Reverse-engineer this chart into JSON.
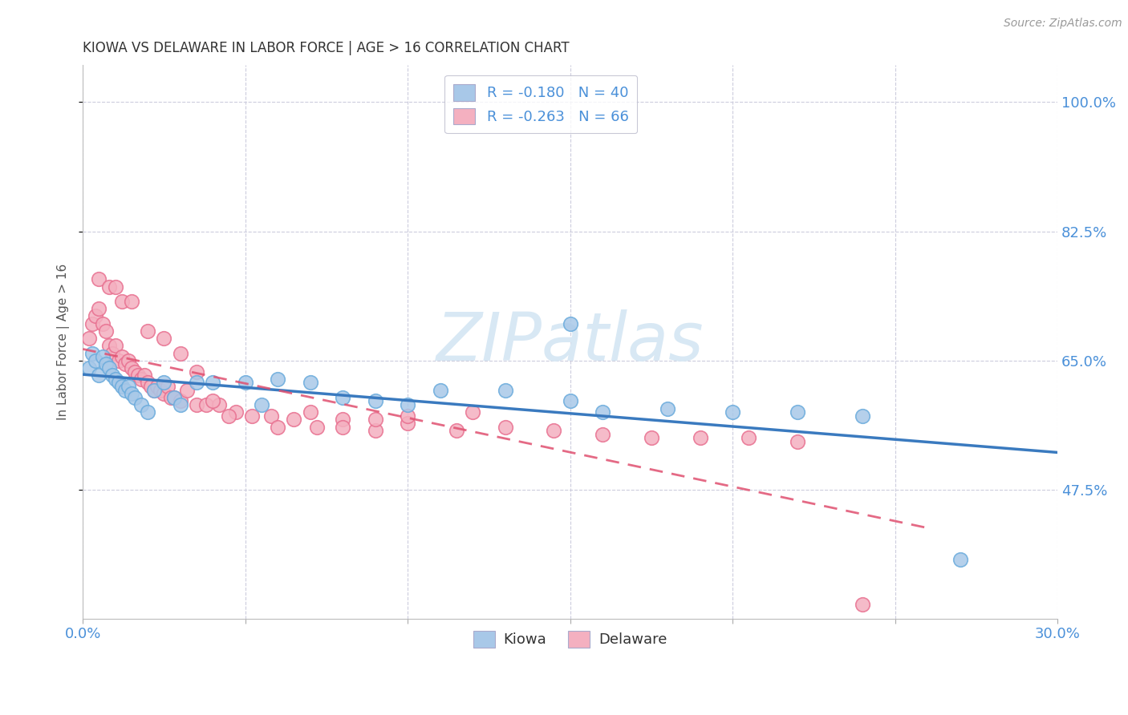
{
  "title": "KIOWA VS DELAWARE IN LABOR FORCE | AGE > 16 CORRELATION CHART",
  "source": "Source: ZipAtlas.com",
  "ylabel": "In Labor Force | Age > 16",
  "xlim": [
    0.0,
    0.3
  ],
  "ylim": [
    0.3,
    1.05
  ],
  "xticks": [
    0.0,
    0.05,
    0.1,
    0.15,
    0.2,
    0.25,
    0.3
  ],
  "xtick_labels": [
    "0.0%",
    "",
    "",
    "",
    "",
    "",
    "30.0%"
  ],
  "ytick_labels": [
    "100.0%",
    "82.5%",
    "65.0%",
    "47.5%"
  ],
  "ytick_positions": [
    1.0,
    0.825,
    0.65,
    0.475
  ],
  "kiowa_color": "#a8c8e8",
  "delaware_color": "#f4b0c0",
  "kiowa_edge": "#6aabdc",
  "delaware_edge": "#e87090",
  "trend_kiowa_color": "#3a7abf",
  "trend_delaware_color": "#e05070",
  "watermark_color": "#d8e8f4",
  "kiowa_x": [
    0.002,
    0.003,
    0.004,
    0.005,
    0.006,
    0.007,
    0.008,
    0.009,
    0.01,
    0.011,
    0.012,
    0.013,
    0.014,
    0.015,
    0.016,
    0.018,
    0.02,
    0.022,
    0.025,
    0.028,
    0.03,
    0.035,
    0.04,
    0.05,
    0.055,
    0.06,
    0.07,
    0.08,
    0.09,
    0.1,
    0.11,
    0.13,
    0.15,
    0.16,
    0.18,
    0.2,
    0.22,
    0.24,
    0.27,
    0.15
  ],
  "kiowa_y": [
    0.64,
    0.66,
    0.65,
    0.63,
    0.655,
    0.645,
    0.64,
    0.63,
    0.625,
    0.62,
    0.615,
    0.61,
    0.615,
    0.605,
    0.6,
    0.59,
    0.58,
    0.61,
    0.62,
    0.6,
    0.59,
    0.62,
    0.62,
    0.62,
    0.59,
    0.625,
    0.62,
    0.6,
    0.595,
    0.59,
    0.61,
    0.61,
    0.595,
    0.58,
    0.585,
    0.58,
    0.58,
    0.575,
    0.38,
    0.7
  ],
  "delaware_x": [
    0.002,
    0.003,
    0.004,
    0.005,
    0.006,
    0.007,
    0.008,
    0.009,
    0.01,
    0.011,
    0.012,
    0.013,
    0.014,
    0.015,
    0.016,
    0.017,
    0.018,
    0.019,
    0.02,
    0.021,
    0.022,
    0.023,
    0.024,
    0.025,
    0.026,
    0.027,
    0.028,
    0.03,
    0.032,
    0.035,
    0.038,
    0.042,
    0.047,
    0.052,
    0.058,
    0.065,
    0.072,
    0.08,
    0.09,
    0.1,
    0.115,
    0.13,
    0.145,
    0.16,
    0.175,
    0.19,
    0.205,
    0.22,
    0.005,
    0.008,
    0.01,
    0.012,
    0.015,
    0.02,
    0.025,
    0.03,
    0.035,
    0.04,
    0.045,
    0.06,
    0.07,
    0.08,
    0.09,
    0.1,
    0.12,
    0.24
  ],
  "delaware_y": [
    0.68,
    0.7,
    0.71,
    0.72,
    0.7,
    0.69,
    0.67,
    0.66,
    0.67,
    0.65,
    0.655,
    0.645,
    0.65,
    0.64,
    0.635,
    0.63,
    0.625,
    0.63,
    0.62,
    0.615,
    0.61,
    0.615,
    0.61,
    0.605,
    0.615,
    0.6,
    0.6,
    0.595,
    0.61,
    0.59,
    0.59,
    0.59,
    0.58,
    0.575,
    0.575,
    0.57,
    0.56,
    0.57,
    0.555,
    0.565,
    0.555,
    0.56,
    0.555,
    0.55,
    0.545,
    0.545,
    0.545,
    0.54,
    0.76,
    0.75,
    0.75,
    0.73,
    0.73,
    0.69,
    0.68,
    0.66,
    0.635,
    0.595,
    0.575,
    0.56,
    0.58,
    0.56,
    0.57,
    0.575,
    0.58,
    0.32
  ]
}
